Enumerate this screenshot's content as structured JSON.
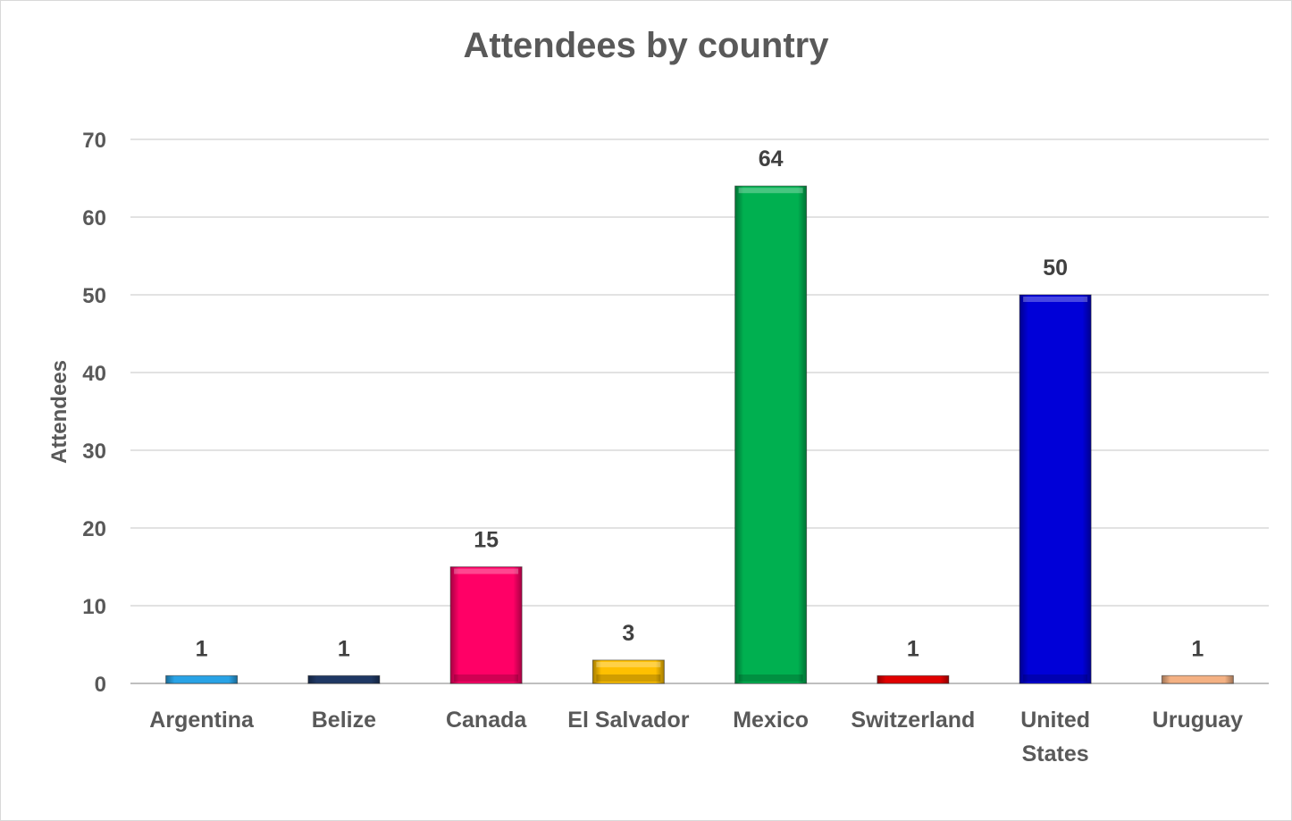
{
  "chart_data": {
    "type": "bar",
    "title": "Attendees by country",
    "xlabel": "",
    "ylabel": "Attendees",
    "ylim": [
      0,
      70
    ],
    "yticks": [
      0,
      10,
      20,
      30,
      40,
      50,
      60,
      70
    ],
    "grid": true,
    "legend": "none",
    "categories": [
      [
        "Argentina"
      ],
      [
        "Belize"
      ],
      [
        "Canada"
      ],
      [
        "El Salvador"
      ],
      [
        "Mexico"
      ],
      [
        "Switzerland"
      ],
      [
        "United",
        "States"
      ],
      [
        "Uruguay"
      ]
    ],
    "values": [
      1,
      1,
      15,
      3,
      64,
      1,
      50,
      1
    ],
    "colors": [
      "#29a3e6",
      "#1f3864",
      "#ff0066",
      "#ffc000",
      "#00b050",
      "#e00000",
      "#0000d8",
      "#f4b183"
    ]
  }
}
